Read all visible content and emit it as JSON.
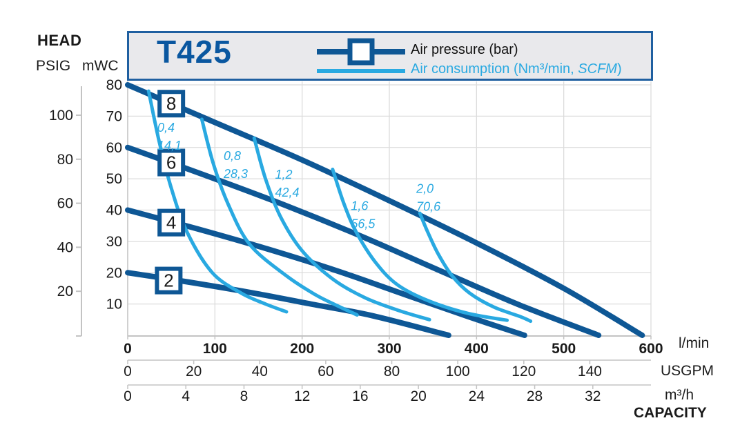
{
  "header": {
    "title": "T425",
    "head_label": "HEAD",
    "psig_label": "PSIG",
    "mwc_label": "mWC",
    "capacity_label": "CAPACITY"
  },
  "legend": {
    "pressure_label": "Air pressure (bar)",
    "consumption_label_prefix": "Air consumption (Nm³/min, ",
    "consumption_label_italic": "SCFM",
    "consumption_label_suffix": ")"
  },
  "units": {
    "flow_lmin": "l/min",
    "flow_usgpm": "USGPM",
    "flow_m3h": "m³/h"
  },
  "colors": {
    "dark_blue": "#0e5795",
    "light_blue": "#29a9e1",
    "title_blue": "#0a57a0",
    "legend_border": "#1f5fa0",
    "legend_bg": "#e9e9ec",
    "grid": "#dcdcdc",
    "axis_gray": "#c3c3c3",
    "text": "#1a1a1a"
  },
  "chart_data": {
    "type": "line",
    "title": "T425",
    "xlabel": "CAPACITY",
    "ylabel": "HEAD",
    "grid": true,
    "x_axes": [
      {
        "name": "lmin",
        "unit_label": "l/min",
        "ticks": [
          0,
          100,
          200,
          300,
          400,
          500,
          600
        ],
        "to_lmin": 1,
        "bold": true
      },
      {
        "name": "usgpm",
        "unit_label": "USGPM",
        "ticks": [
          0,
          20,
          40,
          60,
          80,
          100,
          120,
          140
        ],
        "to_lmin": 3.785,
        "bold": false
      },
      {
        "name": "m3h",
        "unit_label": "m³/h",
        "ticks": [
          0,
          4,
          8,
          12,
          16,
          20,
          24,
          28,
          32
        ],
        "to_lmin": 16.667,
        "bold": false
      }
    ],
    "y_axes": [
      {
        "name": "mwc",
        "unit_label": "mWC",
        "ticks": [
          10,
          20,
          30,
          40,
          50,
          60,
          70,
          80
        ],
        "to_mwc": 1
      },
      {
        "name": "psig",
        "unit_label": "PSIG",
        "ticks": [
          20,
          40,
          60,
          80,
          100
        ],
        "to_mwc": 0.7031
      }
    ],
    "x_range_lmin": [
      0,
      600
    ],
    "y_range_mwc": [
      0,
      80
    ],
    "pressure_series": [
      {
        "bar": "8",
        "marker_at": [
          50,
          74
        ],
        "points": [
          [
            0,
            80
          ],
          [
            100,
            68
          ],
          [
            200,
            56
          ],
          [
            300,
            43
          ],
          [
            400,
            29.5
          ],
          [
            500,
            15
          ],
          [
            590,
            0
          ]
        ]
      },
      {
        "bar": "6",
        "marker_at": [
          50,
          55.2
        ],
        "points": [
          [
            0,
            60
          ],
          [
            90,
            51
          ],
          [
            180,
            41.6
          ],
          [
            270,
            31.4
          ],
          [
            360,
            20.4
          ],
          [
            450,
            9.6
          ],
          [
            540,
            0
          ]
        ]
      },
      {
        "bar": "4",
        "marker_at": [
          50,
          36
        ],
        "points": [
          [
            0,
            40
          ],
          [
            80,
            34
          ],
          [
            160,
            27.6
          ],
          [
            240,
            20.6
          ],
          [
            320,
            12.8
          ],
          [
            390,
            6
          ],
          [
            455,
            0
          ]
        ]
      },
      {
        "bar": "2",
        "marker_at": [
          47,
          17.5
        ],
        "points": [
          [
            0,
            20
          ],
          [
            70,
            17
          ],
          [
            140,
            13.7
          ],
          [
            210,
            10
          ],
          [
            280,
            6.3
          ],
          [
            368,
            0
          ]
        ]
      }
    ],
    "consumption_series": [
      {
        "nm3_min": "0,4",
        "scfm": "14,1",
        "label_at": [
          34,
          65
        ],
        "points": [
          [
            24,
            78
          ],
          [
            36,
            62
          ],
          [
            50,
            47
          ],
          [
            68,
            33
          ],
          [
            97,
            20
          ],
          [
            130,
            13.5
          ],
          [
            158,
            10
          ],
          [
            182,
            7.5
          ]
        ]
      },
      {
        "nm3_min": "0,8",
        "scfm": "28,3",
        "label_at": [
          110,
          56
        ],
        "points": [
          [
            85,
            69
          ],
          [
            98,
            55
          ],
          [
            115,
            42
          ],
          [
            140,
            29
          ],
          [
            182,
            19
          ],
          [
            215,
            13
          ],
          [
            240,
            9.5
          ],
          [
            263,
            6.5
          ]
        ]
      },
      {
        "nm3_min": "1,2",
        "scfm": "42,4",
        "label_at": [
          169,
          50
        ],
        "points": [
          [
            145,
            63
          ],
          [
            158,
            50
          ],
          [
            175,
            38
          ],
          [
            200,
            27
          ],
          [
            235,
            18
          ],
          [
            272,
            12
          ],
          [
            310,
            8
          ],
          [
            346,
            5
          ]
        ]
      },
      {
        "nm3_min": "1,6",
        "scfm": "56,5",
        "label_at": [
          256,
          40
        ],
        "points": [
          [
            235,
            53
          ],
          [
            248,
            42
          ],
          [
            262,
            33
          ],
          [
            285,
            23
          ],
          [
            310,
            16
          ],
          [
            345,
            11
          ],
          [
            390,
            7
          ],
          [
            435,
            4.8
          ]
        ]
      },
      {
        "nm3_min": "2,0",
        "scfm": "70,6",
        "label_at": [
          331,
          45.5
        ],
        "points": [
          [
            335,
            39
          ],
          [
            344,
            33
          ],
          [
            356,
            26
          ],
          [
            372,
            19
          ],
          [
            392,
            13.5
          ],
          [
            420,
            9
          ],
          [
            450,
            6
          ],
          [
            462,
            4.5
          ]
        ]
      }
    ]
  }
}
